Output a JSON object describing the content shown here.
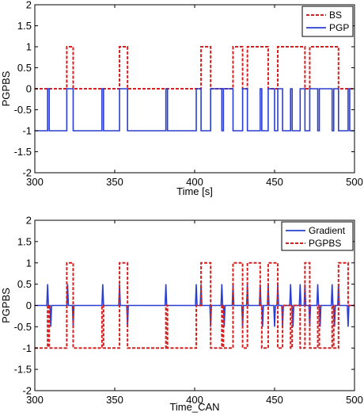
{
  "chart_data": [
    {
      "type": "line",
      "xlabel": "Time [s]",
      "ylabel": "PGPBS",
      "xlim": [
        300,
        500
      ],
      "ylim": [
        -2,
        2
      ],
      "x_ticks": [
        300,
        350,
        400,
        450,
        500
      ],
      "y_ticks": [
        -2,
        -1.5,
        -1,
        -0.5,
        0,
        0.5,
        1,
        1.5,
        2
      ],
      "grid": false,
      "legend_position": "top-right",
      "series": [
        {
          "name": "BS",
          "color": "#d42020",
          "style": "dashed",
          "x": [
            300,
            320,
            320,
            324,
            324,
            353,
            353,
            358,
            358,
            404,
            404,
            410,
            410,
            424,
            424,
            430,
            430,
            433,
            433,
            446,
            446,
            452,
            452,
            469,
            469,
            472,
            472,
            490,
            490,
            496,
            496,
            500
          ],
          "y": [
            0,
            0,
            1,
            1,
            0,
            0,
            1,
            1,
            0,
            0,
            1,
            1,
            0,
            0,
            1,
            1,
            0,
            0,
            1,
            1,
            0,
            0,
            1,
            1,
            0,
            0,
            1,
            1,
            0,
            0,
            0,
            0
          ]
        },
        {
          "name": "PGP",
          "color": "#2a3fd1",
          "style": "solid",
          "x": [
            300,
            308,
            308,
            309,
            309,
            320,
            320,
            324,
            324,
            342,
            342,
            343,
            343,
            353,
            353,
            358,
            358,
            382,
            382,
            383,
            383,
            401,
            401,
            404,
            404,
            410,
            410,
            417,
            417,
            418,
            418,
            424,
            424,
            430,
            430,
            433,
            433,
            441,
            441,
            442,
            442,
            446,
            446,
            450,
            450,
            452,
            452,
            455,
            455,
            460,
            460,
            461,
            461,
            466,
            466,
            469,
            469,
            472,
            472,
            477,
            477,
            478,
            478,
            486,
            486,
            487,
            487,
            490,
            490,
            496,
            496,
            497,
            497,
            500
          ],
          "y": [
            -1,
            -1,
            0,
            0,
            -1,
            -1,
            0,
            0,
            -1,
            -1,
            0,
            0,
            -1,
            -1,
            0,
            0,
            -1,
            -1,
            0,
            0,
            -1,
            -1,
            0,
            0,
            -1,
            -1,
            0,
            0,
            -1,
            -1,
            0,
            0,
            -1,
            -1,
            0,
            0,
            -1,
            -1,
            0,
            0,
            -1,
            -1,
            0,
            0,
            -1,
            -1,
            0,
            0,
            -1,
            -1,
            0,
            0,
            -1,
            -1,
            0,
            0,
            -1,
            -1,
            0,
            0,
            -1,
            -1,
            0,
            0,
            -1,
            -1,
            0,
            0,
            -1,
            -1,
            0,
            0,
            -1,
            -1
          ]
        }
      ]
    },
    {
      "type": "line",
      "xlabel": "Time_CAN",
      "ylabel": "PGPBS",
      "xlim": [
        300,
        500
      ],
      "ylim": [
        -2,
        2
      ],
      "x_ticks": [
        300,
        350,
        400,
        450,
        500
      ],
      "y_ticks": [
        -2,
        -1.5,
        -1,
        -0.5,
        0,
        0.5,
        1,
        1.5,
        2
      ],
      "grid": false,
      "legend_position": "top-right",
      "series": [
        {
          "name": "Gradient",
          "color": "#2a3fd1",
          "style": "solid",
          "x": [
            300,
            307.5,
            308,
            308.5,
            309.5,
            310,
            310.5,
            320,
            320.5,
            321,
            323.5,
            324,
            324.5,
            342,
            342.5,
            343,
            352.5,
            353,
            353.5,
            357.5,
            358,
            358.5,
            381.5,
            382,
            382.5,
            400.5,
            401,
            401.5,
            403.5,
            404,
            404.5,
            409.5,
            410,
            410.5,
            416.5,
            417,
            417.5,
            418,
            418.5,
            419,
            423.5,
            424,
            424.5,
            429.5,
            430,
            430.5,
            432.5,
            433,
            433.5,
            440.5,
            441,
            441.5,
            442,
            442.5,
            443,
            445.5,
            446,
            446.5,
            449.5,
            450,
            450.5,
            451.5,
            452,
            452.5,
            454.5,
            455,
            455.5,
            459.5,
            460,
            460.5,
            461,
            461.5,
            462,
            465.5,
            466,
            466.5,
            468.5,
            469,
            469.5,
            471.5,
            472,
            472.5,
            476.5,
            477,
            477.5,
            478,
            478.5,
            479,
            485.5,
            486,
            486.5,
            487,
            487.5,
            488,
            489.5,
            490,
            490.5,
            495.5,
            496,
            496.5,
            500
          ],
          "y": [
            0,
            0,
            0.5,
            0,
            0,
            -0.5,
            0,
            0,
            0.5,
            0,
            0,
            -0.5,
            0,
            0,
            0.5,
            0,
            0,
            0.5,
            0,
            0,
            -0.5,
            0,
            0,
            0.5,
            0,
            0,
            0.5,
            0,
            0,
            0.5,
            0,
            0,
            -0.5,
            0,
            0,
            0.5,
            0,
            0,
            -0.5,
            0,
            0,
            0.5,
            0,
            0,
            -0.5,
            0,
            0,
            0.5,
            0,
            0,
            0.5,
            0,
            0,
            -0.5,
            0,
            0,
            0.5,
            0,
            0,
            -0.5,
            0,
            0,
            0.5,
            0,
            0,
            -0.5,
            0,
            0,
            0.5,
            0,
            0,
            -0.5,
            0,
            0,
            0.5,
            0,
            0,
            0.5,
            0,
            0,
            -0.5,
            0,
            0,
            0.5,
            0,
            0,
            -0.5,
            0,
            0,
            0.5,
            0,
            0,
            -0.5,
            0,
            0,
            0.5,
            0,
            0,
            -0.5,
            0,
            0
          ]
        },
        {
          "name": "PGPBS",
          "color": "#d42020",
          "style": "dashed",
          "x": [
            300,
            308,
            308,
            309,
            309,
            320,
            320,
            324,
            324,
            342,
            342,
            343,
            343,
            353,
            353,
            358,
            358,
            382,
            382,
            383,
            383,
            401,
            401,
            404,
            404,
            410,
            410,
            417,
            417,
            418,
            418,
            424,
            424,
            430,
            430,
            433,
            433,
            441,
            441,
            442,
            442,
            446,
            446,
            452,
            452,
            455,
            455,
            460,
            460,
            461,
            461,
            466,
            466,
            469,
            469,
            472,
            472,
            477,
            477,
            478,
            478,
            486,
            486,
            487,
            487,
            490,
            490,
            496,
            496,
            500
          ],
          "y": [
            -1,
            -1,
            0,
            0,
            -1,
            -1,
            1,
            1,
            -1,
            -1,
            0,
            0,
            -1,
            -1,
            1,
            1,
            -1,
            -1,
            0,
            0,
            -1,
            -1,
            0,
            0,
            1,
            1,
            -1,
            -1,
            0,
            0,
            -1,
            -1,
            1,
            1,
            -1,
            -1,
            1,
            1,
            0,
            0,
            -1,
            -1,
            1,
            1,
            -1,
            -1,
            0,
            0,
            -1,
            -1,
            0,
            0,
            -1,
            -1,
            1,
            1,
            -1,
            -1,
            0,
            0,
            -1,
            -1,
            0,
            0,
            -1,
            -1,
            1,
            1,
            0,
            0
          ]
        }
      ]
    }
  ]
}
